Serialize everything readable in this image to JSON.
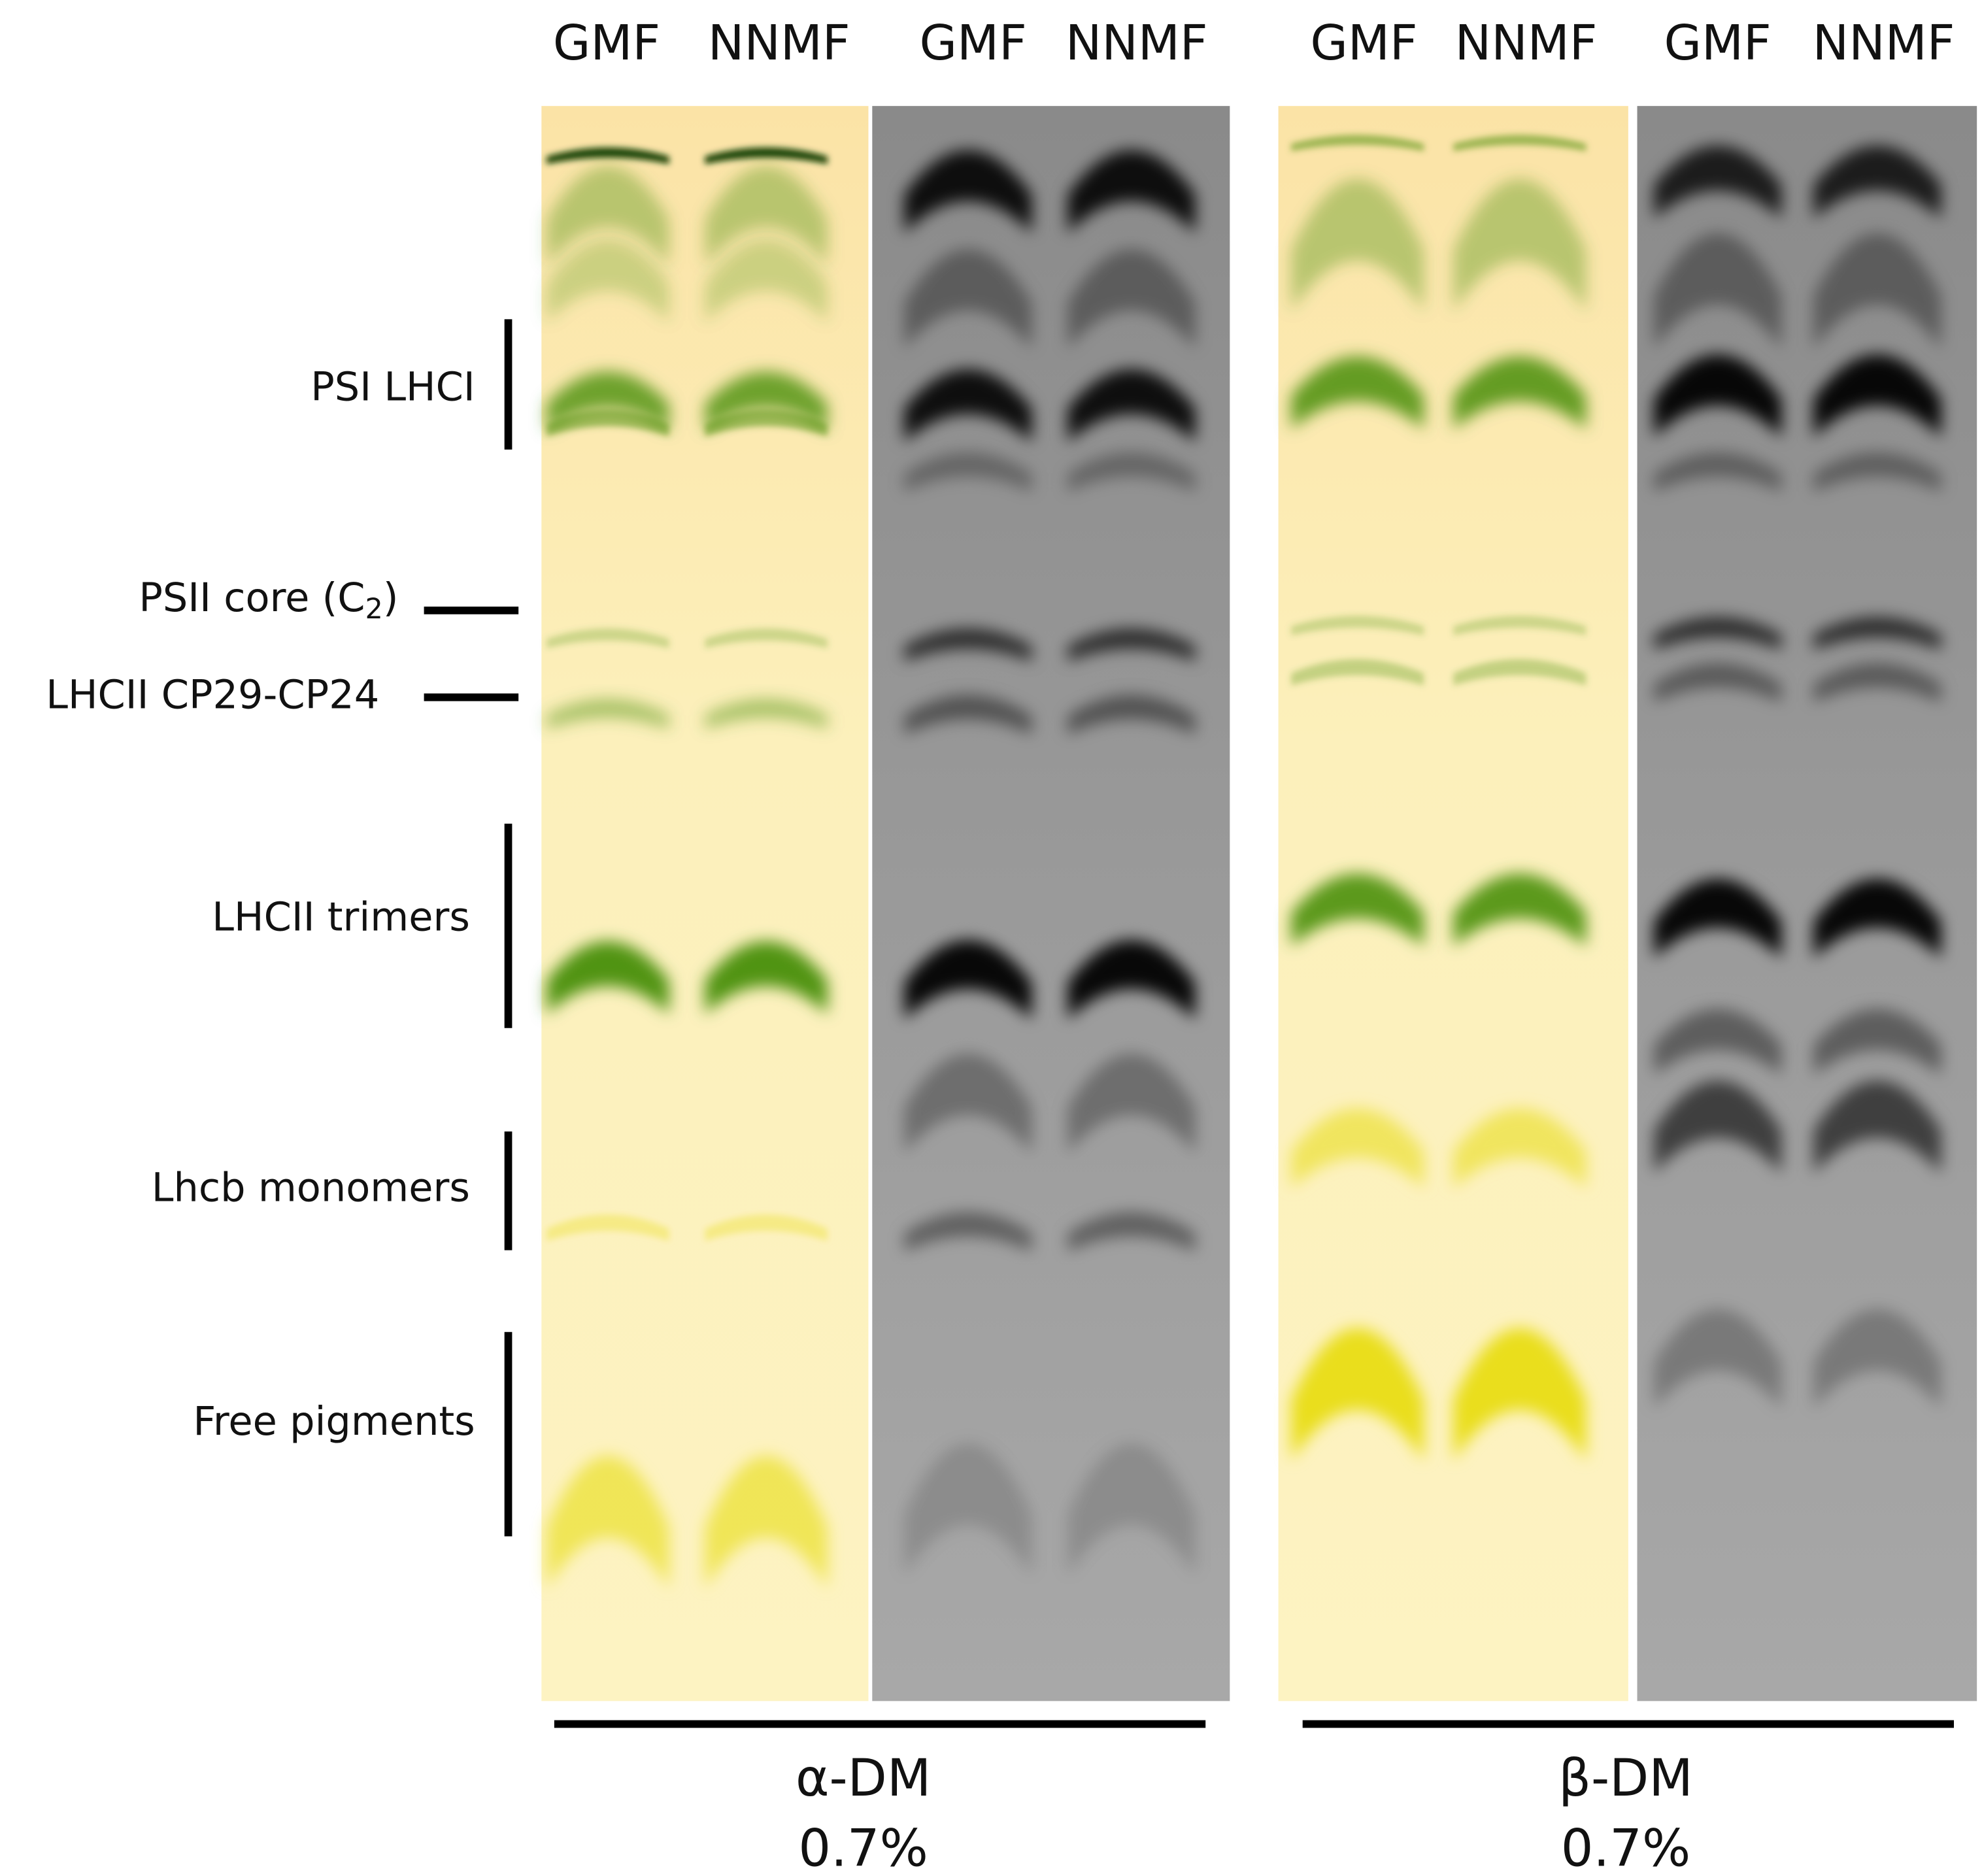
{
  "lane_labels": [
    "GMF",
    "NNMF",
    "GMF",
    "NNMF",
    "GMF",
    "NNMF",
    "GMF",
    "NNMF"
  ],
  "bands": [
    {
      "label": "PSI LHCI"
    },
    {
      "label": "PSII core (C",
      "subscript": "2",
      "label_end": ")"
    },
    {
      "label": "LHCII CP29-CP24"
    },
    {
      "label": "LHCII trimers"
    },
    {
      "label": "Lhcb monomers"
    },
    {
      "label": "Free pigments"
    }
  ],
  "conditions": [
    {
      "detergent": "α-DM",
      "concentration": "0.7%"
    },
    {
      "detergent": "β-DM",
      "concentration": "0.7%"
    }
  ]
}
